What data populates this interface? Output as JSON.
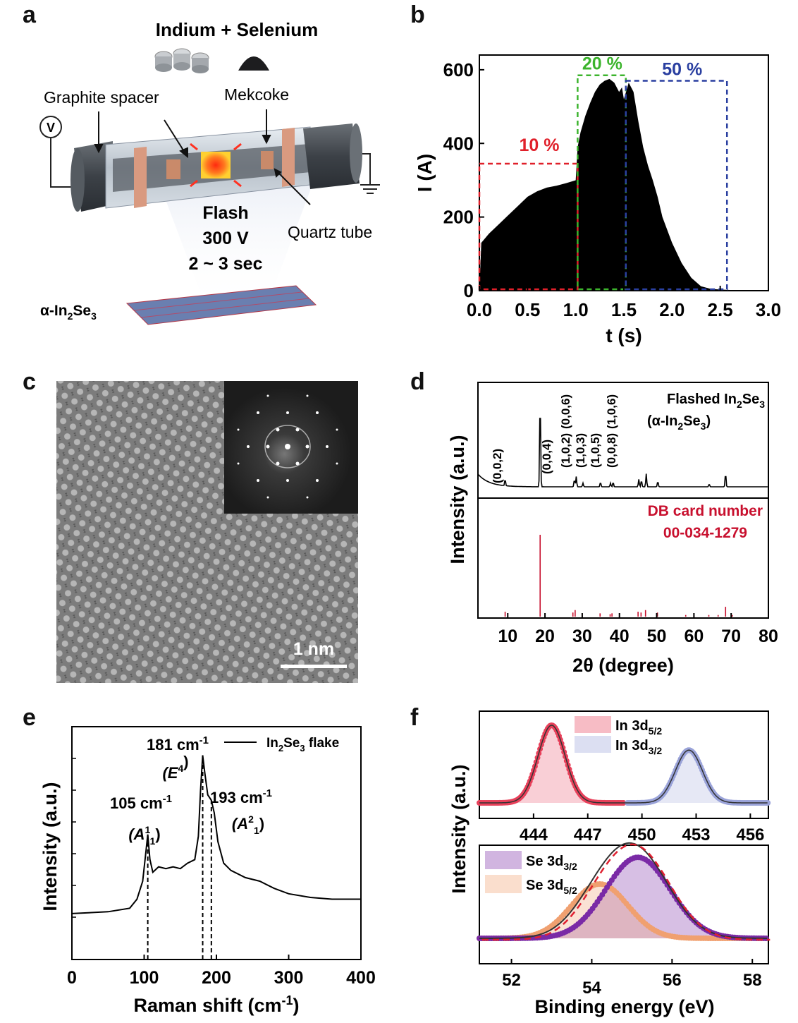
{
  "panel_letters": [
    "a",
    "b",
    "c",
    "d",
    "e",
    "f"
  ],
  "panel_a": {
    "title": "Indium + Selenium",
    "labels": {
      "graphite_spacer": "Graphite spacer",
      "mekcoke": "Mekcoke",
      "quartz_tube": "Quartz tube",
      "voltmeter": "V",
      "flash": "Flash",
      "voltage": "300 V",
      "duration": "2 ~ 3 sec",
      "product_prefix": "α-In",
      "product_sub1": "2",
      "product_mid": "Se",
      "product_sub2": "3"
    },
    "colors": {
      "tube": "#4a4f55",
      "copper": "#d99a80",
      "glow": "#ff5a1a"
    }
  },
  "panel_c": {
    "scale_bar": "1 nm"
  },
  "chart_data": [
    {
      "panel": "b",
      "type": "area",
      "xlabel": "t (s)",
      "ylabel": "I (A)",
      "xlim": [
        0,
        3.0
      ],
      "ylim": [
        0,
        640
      ],
      "xticks": [
        "0.0",
        "0.5",
        "1.0",
        "1.5",
        "2.0",
        "2.5",
        "3.0"
      ],
      "yticks": [
        "0",
        "200",
        "400",
        "600"
      ],
      "x": [
        0.0,
        0.02,
        0.1,
        0.2,
        0.3,
        0.4,
        0.5,
        0.6,
        0.7,
        0.8,
        0.9,
        1.0,
        1.02,
        1.05,
        1.1,
        1.15,
        1.2,
        1.25,
        1.3,
        1.35,
        1.4,
        1.45,
        1.48,
        1.5,
        1.55,
        1.6,
        1.65,
        1.7,
        1.75,
        1.8,
        1.85,
        1.9,
        2.0,
        2.1,
        2.2,
        2.3,
        2.4,
        2.5,
        2.6,
        3.0
      ],
      "y": [
        0,
        130,
        155,
        180,
        205,
        230,
        255,
        270,
        280,
        285,
        292,
        300,
        390,
        430,
        475,
        510,
        540,
        560,
        570,
        575,
        565,
        540,
        552,
        520,
        565,
        540,
        460,
        390,
        340,
        300,
        255,
        200,
        130,
        75,
        35,
        12,
        5,
        3,
        2,
        1
      ],
      "annotations": [
        {
          "label": "10 %",
          "x0": 0.0,
          "x1": 1.02,
          "y": 345,
          "color": "#e0202a"
        },
        {
          "label": "20 %",
          "x0": 1.02,
          "x1": 1.52,
          "y": 585,
          "color": "#3cb42d"
        },
        {
          "label": "50 %",
          "x0": 1.52,
          "x1": 2.57,
          "y": 570,
          "color": "#2a3fa0"
        }
      ]
    },
    {
      "panel": "d",
      "type": "line",
      "xlabel": "2θ (degree)",
      "ylabel": "Intensity (a.u.)",
      "xlim": [
        2,
        80
      ],
      "xticks": [
        "10",
        "20",
        "30",
        "40",
        "50",
        "60",
        "70",
        "80"
      ],
      "series": [
        {
          "name_main": "Flashed In",
          "name_sub1": "2",
          "name_mid": "Se",
          "name_sub2": "3",
          "name2_prefix": "(α-In",
          "name2_sub1": "2",
          "name2_mid": "Se",
          "name2_sub2": "3",
          "name2_suffix": ")",
          "peaks_x": [
            9.3,
            18.7,
            27.9,
            28.4,
            30.2,
            34.9,
            37.6,
            38.3,
            45.2,
            45.9,
            47.2,
            50.3,
            64.1,
            68.5
          ],
          "peaks_h": [
            0.07,
            1.0,
            0.08,
            0.11,
            0.04,
            0.05,
            0.04,
            0.05,
            0.08,
            0.07,
            0.14,
            0.06,
            0.03,
            0.15
          ]
        },
        {
          "name": "DB card number",
          "name2": "00-034-1279",
          "peaks_x": [
            9.3,
            18.7,
            27.5,
            28.1,
            30.0,
            34.8,
            37.5,
            38.0,
            45.0,
            45.8,
            47.0,
            50.2,
            57.8,
            60.0,
            64.0,
            66.5,
            68.5,
            70.3
          ],
          "peaks_h": [
            0.06,
            1.0,
            0.05,
            0.08,
            0.03,
            0.04,
            0.03,
            0.04,
            0.06,
            0.05,
            0.08,
            0.05,
            0.02,
            0.02,
            0.02,
            0.02,
            0.12,
            0.02
          ]
        }
      ],
      "peak_labels": [
        "(0,0,2)",
        "(0,0,4)",
        "(1,0,2)",
        "(1,0,3)",
        "(1,0,5)",
        "(0,0,6)",
        "(0,0,8)",
        "(1,0,6)"
      ]
    },
    {
      "panel": "e",
      "type": "line",
      "xlabel": "Raman shift (cm",
      "xlabel_sup": "-1",
      "xlabel_end": ")",
      "ylabel": "Intensity (a.u.)",
      "xlim": [
        0,
        400
      ],
      "xticks": [
        "0",
        "100",
        "200",
        "300",
        "400"
      ],
      "series": [
        {
          "name_pre": "In",
          "name_sub1": "2",
          "name_mid": "Se",
          "name_sub2": "3",
          "name_post": " flake",
          "x": [
            0,
            50,
            80,
            90,
            98,
            102,
            105,
            108,
            112,
            120,
            130,
            140,
            150,
            160,
            170,
            175,
            178,
            181,
            184,
            188,
            193,
            197,
            202,
            210,
            220,
            240,
            260,
            280,
            300,
            330,
            360,
            400
          ],
          "y": [
            0.02,
            0.03,
            0.05,
            0.1,
            0.2,
            0.35,
            0.46,
            0.32,
            0.25,
            0.28,
            0.27,
            0.28,
            0.27,
            0.3,
            0.32,
            0.45,
            0.7,
            0.9,
            0.8,
            0.68,
            0.65,
            0.58,
            0.42,
            0.3,
            0.26,
            0.22,
            0.2,
            0.16,
            0.13,
            0.11,
            0.1,
            0.1
          ]
        }
      ],
      "peak_annotations": [
        {
          "value": "105 cm",
          "sup": "-1",
          "mode_pre": "(A",
          "mode_sup": "1",
          "mode_sub": "1",
          "mode_post": ")",
          "x": 105
        },
        {
          "value": "181 cm",
          "sup": "-1",
          "mode_pre": "(E",
          "mode_sup": "4",
          "mode_sub": "",
          "mode_post": ")",
          "x": 181
        },
        {
          "value": "193 cm",
          "sup": "-1",
          "mode_pre": "(A",
          "mode_sup": "2",
          "mode_sub": "1",
          "mode_post": ")",
          "x": 193
        }
      ]
    },
    {
      "panel": "f-top",
      "type": "scatter",
      "ylabel": "Intensity (a.u.)",
      "xlim": [
        441,
        457
      ],
      "xticks": [
        "444",
        "447",
        "450",
        "453",
        "456"
      ],
      "series": [
        {
          "name": "In 3d",
          "sub": "5/2",
          "center": 445.0,
          "sigma": 0.75,
          "height": 1.0,
          "color": "#e8405a"
        },
        {
          "name": "In 3d",
          "sub": "3/2",
          "center": 452.6,
          "sigma": 0.75,
          "height": 0.68,
          "color": "#9aa3d9"
        }
      ]
    },
    {
      "panel": "f-bottom",
      "type": "scatter",
      "xlabel": "Binding energy (eV)",
      "xlim": [
        51.2,
        58.4
      ],
      "xticks": [
        "52",
        "54",
        "56",
        "58"
      ],
      "series": [
        {
          "name": "Se 3d",
          "sub": "3/2",
          "center": 55.15,
          "sigma": 0.8,
          "height": 0.82,
          "color": "#7a2aa6"
        },
        {
          "name": "Se 3d",
          "sub": "5/2",
          "center": 54.2,
          "sigma": 0.7,
          "height": 0.55,
          "color": "#f0a070"
        }
      ]
    }
  ]
}
